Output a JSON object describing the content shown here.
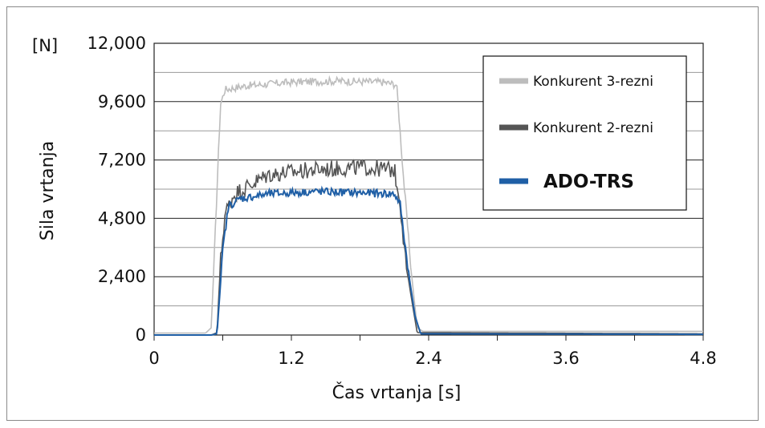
{
  "chart_data": {
    "type": "line",
    "title": "",
    "xlabel": "Čas vrtanja [s]",
    "ylabel": "Sila vrtanja",
    "yunit": "[N]",
    "xlim": [
      0,
      4.8
    ],
    "ylim": [
      0,
      12000
    ],
    "x_ticks": [
      "0",
      "1.2",
      "2.4",
      "3.6",
      "4.8"
    ],
    "y_ticks": [
      "0",
      "2,400",
      "4,800",
      "7,200",
      "9,600",
      "12,000"
    ],
    "grid": true,
    "legend_position": "top-right",
    "series": [
      {
        "name": "Konkurent 3-rezni",
        "color": "#bdbdbd",
        "x": [
          0,
          0.45,
          0.5,
          0.55,
          0.58,
          0.62,
          0.8,
          1.2,
          1.6,
          2.0,
          2.12,
          2.18,
          2.25,
          2.3,
          2.35,
          4.8
        ],
        "y": [
          80,
          80,
          300,
          6000,
          9500,
          10100,
          10250,
          10400,
          10450,
          10400,
          10300,
          6500,
          2500,
          300,
          150,
          150
        ]
      },
      {
        "name": "Konkurent 2-rezni",
        "color": "#555555",
        "x": [
          0,
          0.5,
          0.55,
          0.58,
          0.62,
          0.7,
          1.0,
          1.4,
          1.8,
          2.1,
          2.15,
          2.2,
          2.26,
          2.3,
          4.8
        ],
        "y": [
          0,
          0,
          100,
          3000,
          5000,
          5800,
          6600,
          6800,
          6900,
          6800,
          5500,
          3000,
          1200,
          100,
          50
        ]
      },
      {
        "name": "ADO-TRS",
        "color": "#1f5fa6",
        "x": [
          0,
          0.5,
          0.55,
          0.6,
          0.65,
          0.75,
          1.0,
          1.4,
          1.8,
          2.1,
          2.15,
          2.22,
          2.28,
          2.33,
          4.8
        ],
        "y": [
          0,
          0,
          50,
          3500,
          5300,
          5600,
          5800,
          5900,
          5850,
          5800,
          5400,
          2700,
          800,
          50,
          30
        ]
      }
    ]
  }
}
